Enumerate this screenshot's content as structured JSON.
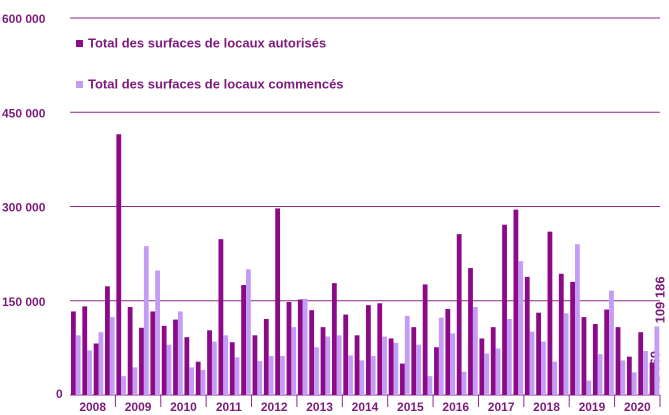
{
  "chart_data": {
    "type": "bar",
    "categories": [
      "2008",
      "2009",
      "2010",
      "2011",
      "2012",
      "2013",
      "2014",
      "2015",
      "2016",
      "2017",
      "2018",
      "2019",
      "2020"
    ],
    "series": [
      {
        "name": "Total des surfaces de locaux autorisés",
        "color": "#8c0a88",
        "values": [
          [
            133000,
            141000,
            82000,
            173000
          ],
          [
            415000,
            140000,
            107000,
            133000
          ],
          [
            110000,
            120000,
            92000,
            53000
          ],
          [
            103000,
            248000,
            84000,
            175000
          ],
          [
            95000,
            121000,
            297000,
            148000
          ],
          [
            152000,
            135000,
            108000,
            178000
          ],
          [
            128000,
            95000,
            143000,
            146000
          ],
          [
            90000,
            50000,
            108000,
            176000
          ],
          [
            76000,
            137000,
            256000,
            202000
          ],
          [
            90000,
            108000,
            271000,
            295000
          ],
          [
            188000,
            131000,
            260000,
            193000
          ],
          [
            180000,
            124000,
            113000,
            136000
          ],
          [
            108000,
            61000,
            100000,
            51569
          ]
        ],
        "value_labels": [
          [
            null,
            null,
            null,
            null
          ],
          [
            null,
            null,
            null,
            null
          ],
          [
            null,
            null,
            null,
            null
          ],
          [
            null,
            null,
            null,
            null
          ],
          [
            null,
            null,
            null,
            null
          ],
          [
            null,
            null,
            null,
            null
          ],
          [
            null,
            null,
            null,
            null
          ],
          [
            null,
            null,
            null,
            null
          ],
          [
            null,
            null,
            null,
            null
          ],
          [
            null,
            null,
            null,
            null
          ],
          [
            null,
            null,
            null,
            null
          ],
          [
            null,
            null,
            null,
            null
          ],
          [
            null,
            null,
            null,
            "51 569"
          ]
        ]
      },
      {
        "name": "Total des surfaces de locaux commencés",
        "color": "#c59cf5",
        "values": [
          [
            95000,
            71000,
            100000,
            124000
          ],
          [
            30000,
            44000,
            237000,
            198000
          ],
          [
            80000,
            133000,
            44000,
            40000
          ],
          [
            85000,
            95000,
            60000,
            200000
          ],
          [
            54000,
            62000,
            62000,
            108000
          ],
          [
            153000,
            76000,
            93000,
            95000
          ],
          [
            63000,
            55000,
            62000,
            93000
          ],
          [
            83000,
            126000,
            80000,
            30000
          ],
          [
            123000,
            98000,
            37000,
            140000
          ],
          [
            66000,
            74000,
            121000,
            213000
          ],
          [
            101000,
            85000,
            53000,
            130000
          ],
          [
            240000,
            23000,
            65000,
            166000
          ],
          [
            55000,
            36000,
            70000,
            109186
          ]
        ],
        "value_labels": [
          [
            null,
            null,
            null,
            null
          ],
          [
            null,
            null,
            null,
            null
          ],
          [
            null,
            null,
            null,
            null
          ],
          [
            null,
            null,
            null,
            null
          ],
          [
            null,
            null,
            null,
            null
          ],
          [
            null,
            null,
            null,
            null
          ],
          [
            null,
            null,
            null,
            null
          ],
          [
            null,
            null,
            null,
            null
          ],
          [
            null,
            null,
            null,
            null
          ],
          [
            null,
            null,
            null,
            null
          ],
          [
            null,
            null,
            null,
            null
          ],
          [
            null,
            null,
            null,
            null
          ],
          [
            null,
            null,
            null,
            "109 186"
          ]
        ]
      }
    ],
    "ylim": [
      0,
      600000
    ],
    "yticks": [
      {
        "value": 0,
        "label": "0"
      },
      {
        "value": 150000,
        "label": "150 000"
      },
      {
        "value": 300000,
        "label": "300 000"
      },
      {
        "value": 450000,
        "label": "450 000"
      },
      {
        "value": 600000,
        "label": "600 000"
      }
    ],
    "grid": true,
    "legend": "upper left"
  }
}
